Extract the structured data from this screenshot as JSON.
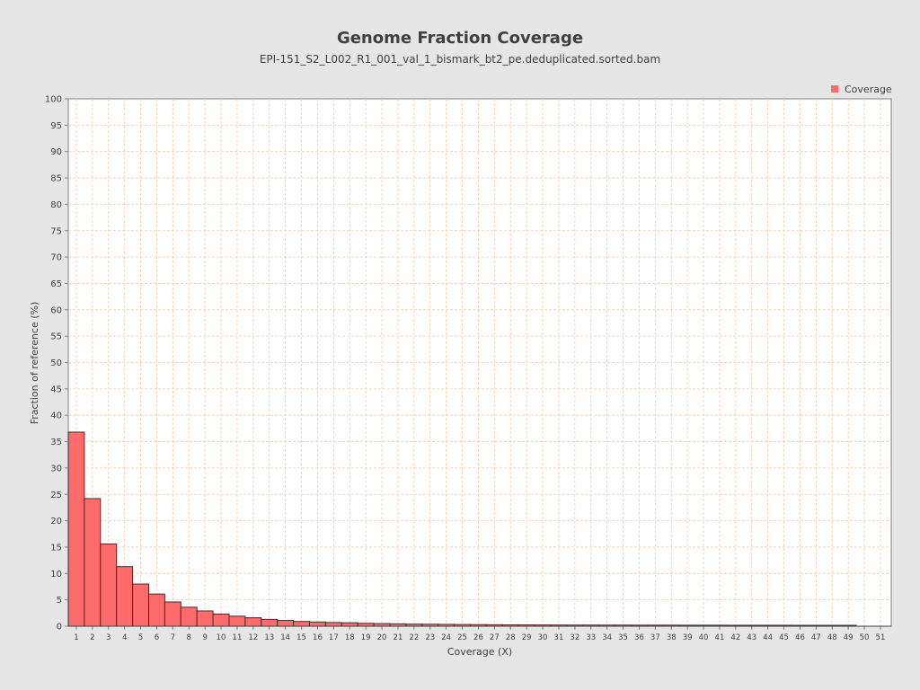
{
  "chart_data": {
    "type": "bar",
    "title": "Genome Fraction Coverage",
    "subtitle": "EPI-151_S2_L002_R1_001_val_1_bismark_bt2_pe.deduplicated.sorted.bam",
    "xlabel": "Coverage (X)",
    "ylabel": "Fraction of reference (%)",
    "ylim": [
      0,
      100
    ],
    "yticks": [
      0,
      5,
      10,
      15,
      20,
      25,
      30,
      35,
      40,
      45,
      50,
      55,
      60,
      65,
      70,
      75,
      80,
      85,
      90,
      95,
      100
    ],
    "categories": [
      "1",
      "2",
      "3",
      "4",
      "5",
      "6",
      "7",
      "8",
      "9",
      "10",
      "11",
      "12",
      "13",
      "14",
      "15",
      "16",
      "17",
      "18",
      "19",
      "20",
      "21",
      "22",
      "23",
      "24",
      "25",
      "26",
      "27",
      "28",
      "29",
      "30",
      "31",
      "32",
      "33",
      "34",
      "35",
      "36",
      "37",
      "38",
      "39",
      "40",
      "41",
      "42",
      "43",
      "44",
      "45",
      "46",
      "47",
      "48",
      "49",
      "50",
      "51"
    ],
    "series": [
      {
        "name": "Coverage",
        "color": "#ff6b6b",
        "values": [
          36.8,
          24.2,
          15.6,
          11.3,
          8.0,
          6.1,
          4.6,
          3.6,
          2.9,
          2.3,
          1.9,
          1.6,
          1.3,
          1.1,
          0.9,
          0.8,
          0.7,
          0.65,
          0.55,
          0.5,
          0.45,
          0.4,
          0.38,
          0.35,
          0.32,
          0.3,
          0.28,
          0.26,
          0.25,
          0.24,
          0.23,
          0.22,
          0.22,
          0.21,
          0.21,
          0.2,
          0.2,
          0.2,
          0.19,
          0.19,
          0.19,
          0.18,
          0.18,
          0.18,
          0.18,
          0.17,
          0.17,
          0.17,
          0.17,
          0.0,
          0.0
        ]
      }
    ],
    "grid": true,
    "legend": "top-right"
  }
}
